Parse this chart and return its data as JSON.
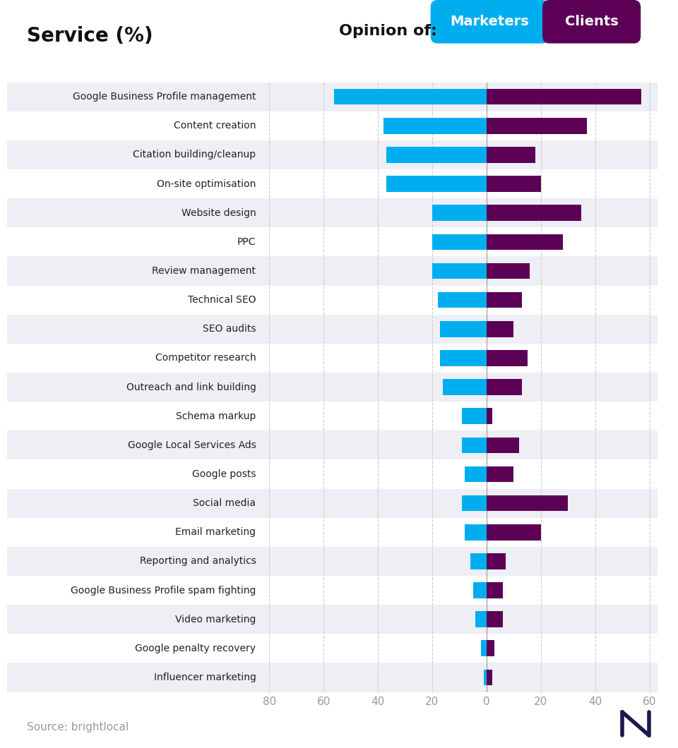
{
  "categories": [
    "Google Business Profile management",
    "Content creation",
    "Citation building/cleanup",
    "On-site optimisation",
    "Website design",
    "PPC",
    "Review management",
    "Technical SEO",
    "SEO audits",
    "Competitor research",
    "Outreach and link building",
    "Schema markup",
    "Google Local Services Ads",
    "Google posts",
    "Social media",
    "Email marketing",
    "Reporting and analytics",
    "Google Business Profile spam fighting",
    "Video marketing",
    "Google penalty recovery",
    "Influencer marketing"
  ],
  "marketers": [
    56,
    38,
    37,
    37,
    20,
    20,
    20,
    18,
    17,
    17,
    16,
    9,
    9,
    8,
    9,
    8,
    6,
    5,
    4,
    2,
    1
  ],
  "clients": [
    57,
    37,
    18,
    20,
    35,
    28,
    16,
    13,
    10,
    15,
    13,
    2,
    12,
    10,
    30,
    20,
    7,
    6,
    6,
    3,
    2
  ],
  "marketer_color": "#00AEEF",
  "client_color": "#5B0055",
  "title_left": "Service (%)",
  "opinion_label": "Opinion of:",
  "legend_marketer": "Marketers",
  "legend_client": "Clients",
  "background_color": "#FFFFFF",
  "row_alt_color": "#EEEEF5",
  "row_main_color": "#FFFFFF",
  "xlim_left": -83,
  "xlim_right": 63,
  "xticks": [
    -80,
    -60,
    -40,
    -20,
    0,
    20,
    40,
    60
  ],
  "xtick_labels": [
    "80",
    "60",
    "40",
    "20",
    "0",
    "20",
    "40",
    "60"
  ],
  "source_text": "Source: brightlocal",
  "bar_height": 0.55,
  "pink_underline_color": "#FF0066"
}
